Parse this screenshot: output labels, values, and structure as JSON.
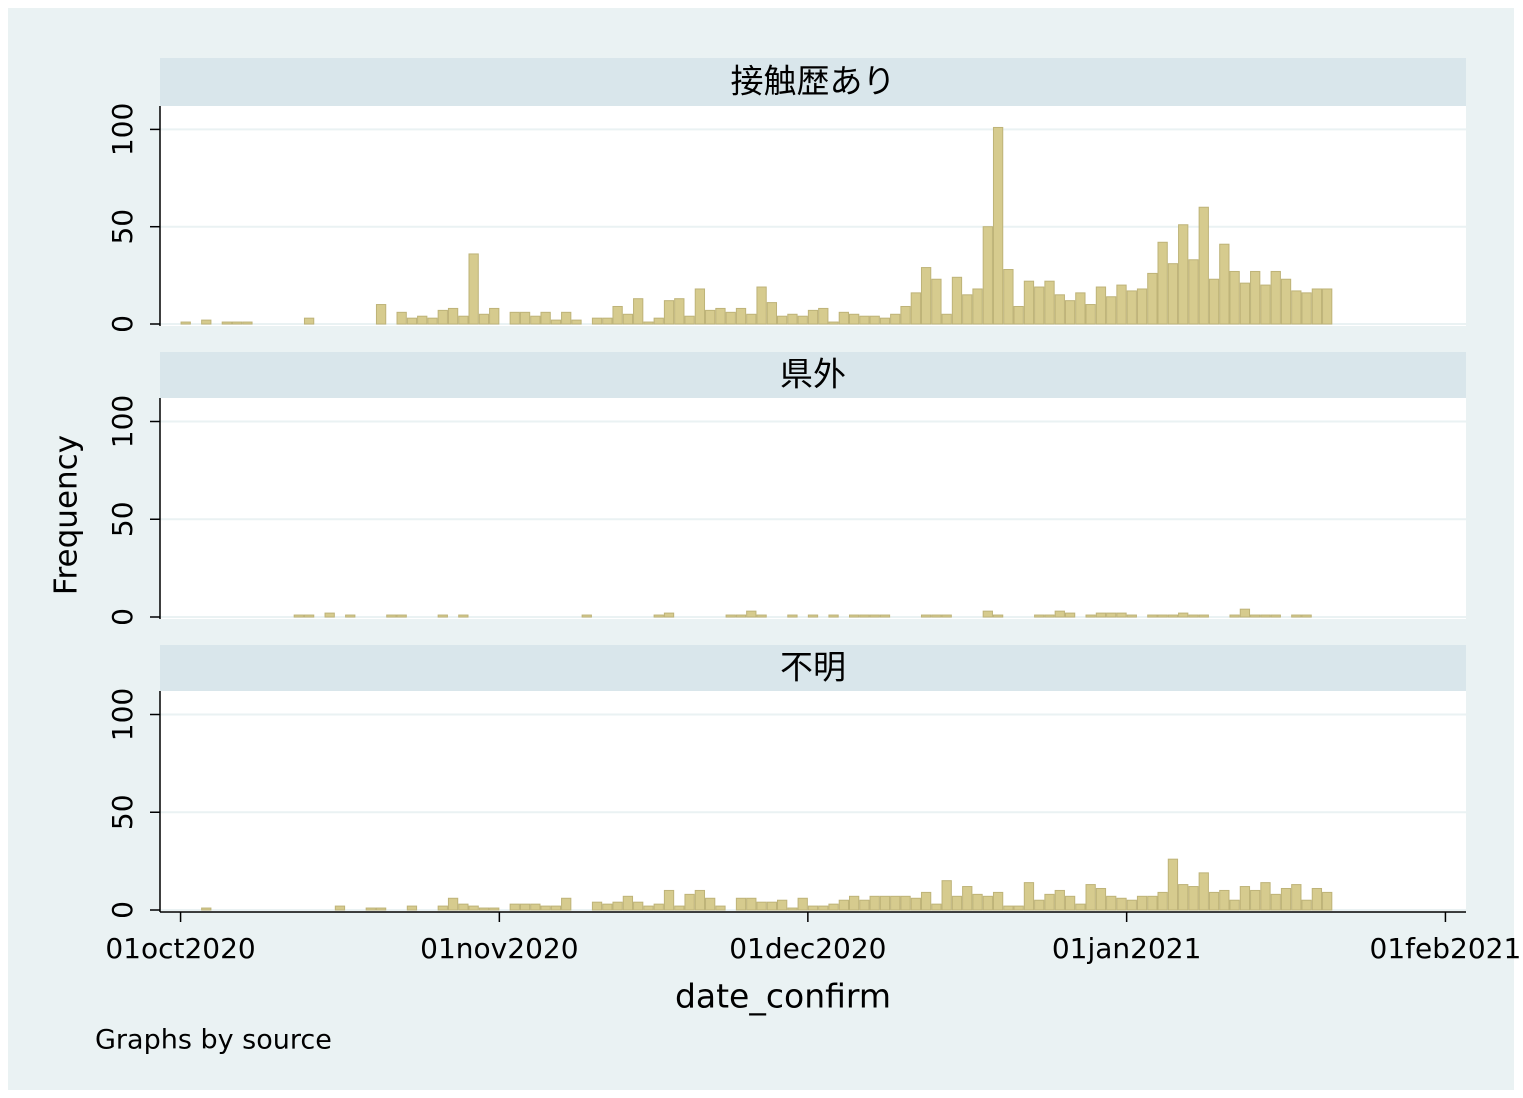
{
  "chart_data": {
    "type": "histogram",
    "x_label": "date_confirm",
    "y_label": "Frequency",
    "note": "Graphs by source",
    "color": "#d6cb8e",
    "grid": true,
    "xlim": [
      22187,
      22314
    ],
    "xticks": [
      {
        "value": 22189,
        "label": "01oct2020"
      },
      {
        "value": 22220,
        "label": "01nov2020"
      },
      {
        "value": 22250,
        "label": "01dec2020"
      },
      {
        "value": 22281,
        "label": "01jan2021"
      },
      {
        "value": 22312,
        "label": "01feb2021"
      }
    ],
    "ylim": [
      0,
      111
    ],
    "yticks": [
      0,
      50,
      100
    ],
    "bins": [
      22189,
      22190,
      22191,
      22192,
      22193,
      22194,
      22195,
      22196,
      22197,
      22198,
      22199,
      22200,
      22201,
      22202,
      22203,
      22204,
      22205,
      22206,
      22207,
      22208,
      22209,
      22210,
      22211,
      22212,
      22213,
      22214,
      22215,
      22216,
      22217,
      22218,
      22219,
      22220,
      22221,
      22222,
      22223,
      22224,
      22225,
      22226,
      22227,
      22228,
      22229,
      22230,
      22231,
      22232,
      22233,
      22234,
      22235,
      22236,
      22237,
      22238,
      22239,
      22240,
      22241,
      22242,
      22243,
      22244,
      22245,
      22246,
      22247,
      22248,
      22249,
      22250,
      22251,
      22252,
      22253,
      22254,
      22255,
      22256,
      22257,
      22258,
      22259,
      22260,
      22261,
      22262,
      22263,
      22264,
      22265,
      22266,
      22267,
      22268,
      22269,
      22270,
      22271,
      22272,
      22273,
      22274,
      22275,
      22276,
      22277,
      22278,
      22279,
      22280,
      22281,
      22282,
      22283,
      22284,
      22285,
      22286,
      22287,
      22288,
      22289,
      22290,
      22291,
      22292,
      22293,
      22294,
      22295,
      22296,
      22297,
      22298,
      22299,
      22300,
      22301
    ],
    "series": [
      {
        "name": "接触歴あり",
        "values": [
          1,
          0,
          2,
          0,
          1,
          1,
          1,
          0,
          0,
          0,
          0,
          0,
          3,
          0,
          0,
          0,
          0,
          0,
          0,
          10,
          0,
          6,
          3,
          4,
          3,
          7,
          8,
          4,
          36,
          5,
          8,
          0,
          6,
          6,
          4,
          6,
          2,
          6,
          2,
          0,
          3,
          3,
          9,
          5,
          13,
          1,
          3,
          12,
          13,
          4,
          18,
          7,
          8,
          6,
          8,
          5,
          19,
          11,
          4,
          5,
          4,
          7,
          8,
          1,
          6,
          5,
          4,
          4,
          3,
          5,
          9,
          16,
          29,
          23,
          5,
          24,
          15,
          18,
          50,
          101,
          28,
          9,
          22,
          19,
          22,
          15,
          12,
          16,
          10,
          19,
          14,
          20,
          17,
          18,
          26,
          42,
          31,
          51,
          33,
          60,
          23,
          41,
          27,
          21,
          27,
          20,
          27,
          23,
          17,
          16,
          18,
          18
        ]
      },
      {
        "name": "県外",
        "values": [
          0,
          0,
          0,
          0,
          0,
          0,
          0,
          0,
          0,
          0,
          0,
          1,
          1,
          0,
          2,
          0,
          1,
          0,
          0,
          0,
          1,
          1,
          0,
          0,
          0,
          1,
          0,
          1,
          0,
          0,
          0,
          0,
          0,
          0,
          0,
          0,
          0,
          0,
          0,
          1,
          0,
          0,
          0,
          0,
          0,
          0,
          1,
          2,
          0,
          0,
          0,
          0,
          0,
          1,
          1,
          3,
          1,
          0,
          0,
          1,
          0,
          1,
          0,
          1,
          0,
          1,
          1,
          1,
          1,
          0,
          0,
          0,
          1,
          1,
          1,
          0,
          0,
          0,
          3,
          1,
          0,
          0,
          0,
          1,
          1,
          3,
          2,
          0,
          1,
          2,
          2,
          2,
          1,
          0,
          1,
          1,
          1,
          2,
          1,
          1,
          0,
          0,
          1,
          4,
          1,
          1,
          1,
          0,
          1,
          1,
          0,
          0
        ]
      },
      {
        "name": "不明",
        "values": [
          0,
          0,
          1,
          0,
          0,
          0,
          0,
          0,
          0,
          0,
          0,
          0,
          0,
          0,
          0,
          2,
          0,
          0,
          1,
          1,
          0,
          0,
          2,
          0,
          0,
          2,
          6,
          3,
          2,
          1,
          1,
          0,
          3,
          3,
          3,
          2,
          2,
          6,
          0,
          0,
          4,
          3,
          4,
          7,
          4,
          2,
          3,
          10,
          2,
          8,
          10,
          6,
          2,
          0,
          6,
          6,
          4,
          4,
          5,
          1,
          6,
          2,
          2,
          3,
          5,
          7,
          5,
          7,
          7,
          7,
          7,
          6,
          9,
          3,
          15,
          7,
          12,
          8,
          7,
          9,
          2,
          2,
          14,
          5,
          8,
          10,
          7,
          3,
          13,
          11,
          7,
          6,
          5,
          7,
          7,
          9,
          26,
          13,
          12,
          19,
          9,
          10,
          5,
          12,
          10,
          14,
          8,
          11,
          13,
          5,
          11,
          9
        ]
      }
    ]
  }
}
